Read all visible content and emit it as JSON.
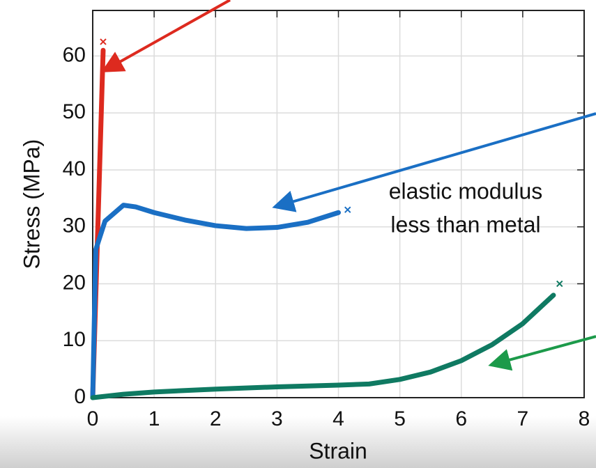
{
  "chart_data": {
    "type": "line",
    "xlabel": "Strain",
    "ylabel": "Stress (MPa)",
    "annotations": [
      "elastic modulus",
      "less than metal"
    ],
    "xlim": [
      0,
      8
    ],
    "xticks": [
      0,
      1,
      2,
      3,
      4,
      5,
      6,
      7,
      8
    ],
    "ylim": [
      0,
      68
    ],
    "yticks": [
      0,
      10,
      20,
      30,
      40,
      50,
      60
    ],
    "grid": true,
    "series": [
      {
        "color": "#dd2a1f",
        "x": [
          0,
          0.17
        ],
        "values": [
          0,
          61
        ],
        "fracture_x": 0.17,
        "fracture_y": 62.5
      },
      {
        "color": "#1a6fc4",
        "x": [
          0,
          0.05,
          0.2,
          0.5,
          0.7,
          1,
          1.5,
          2,
          2.5,
          3,
          3.5,
          4
        ],
        "values": [
          0,
          26,
          31,
          33.8,
          33.5,
          32.5,
          31.2,
          30.2,
          29.7,
          29.9,
          30.8,
          32.5
        ],
        "fracture_x": 4.15,
        "fracture_y": 33
      },
      {
        "color": "#0f7a62",
        "x": [
          0,
          0.5,
          1,
          2,
          3,
          4,
          4.5,
          5,
          5.5,
          6,
          6.5,
          7,
          7.5
        ],
        "values": [
          0,
          0.6,
          1,
          1.5,
          1.9,
          2.2,
          2.4,
          3.2,
          4.5,
          6.5,
          9.3,
          13,
          18
        ],
        "fracture_x": 7.6,
        "fracture_y": 20
      }
    ]
  }
}
